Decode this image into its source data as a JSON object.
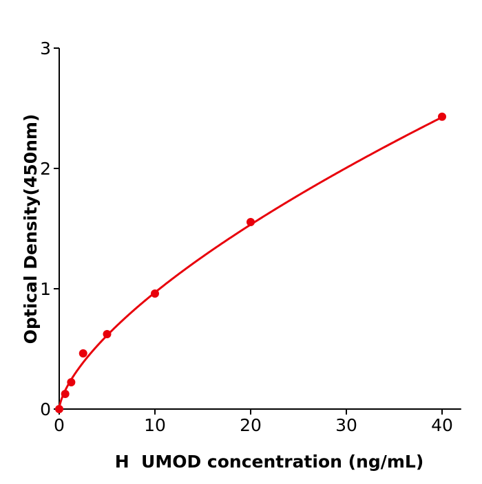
{
  "chart_data": {
    "type": "scatter",
    "title": "",
    "xlabel": "H  UMOD concentration (ng/mL)",
    "ylabel": "Optical Density(450nm)",
    "xlim": [
      0,
      42
    ],
    "ylim": [
      0,
      3
    ],
    "xticks": [
      0,
      10,
      20,
      30,
      40
    ],
    "yticks": [
      0,
      1,
      2,
      3
    ],
    "grid": false,
    "series": [
      {
        "x": [
          0,
          0.625,
          1.25,
          2.5,
          5,
          10,
          20,
          40
        ],
        "y": [
          0.0,
          0.126,
          0.223,
          0.463,
          0.623,
          0.96,
          1.554,
          2.43
        ],
        "color": "#e8000b"
      }
    ],
    "fit": {
      "type": "power",
      "a": 0.211,
      "b": 0.662,
      "color": "#e8000b"
    }
  }
}
